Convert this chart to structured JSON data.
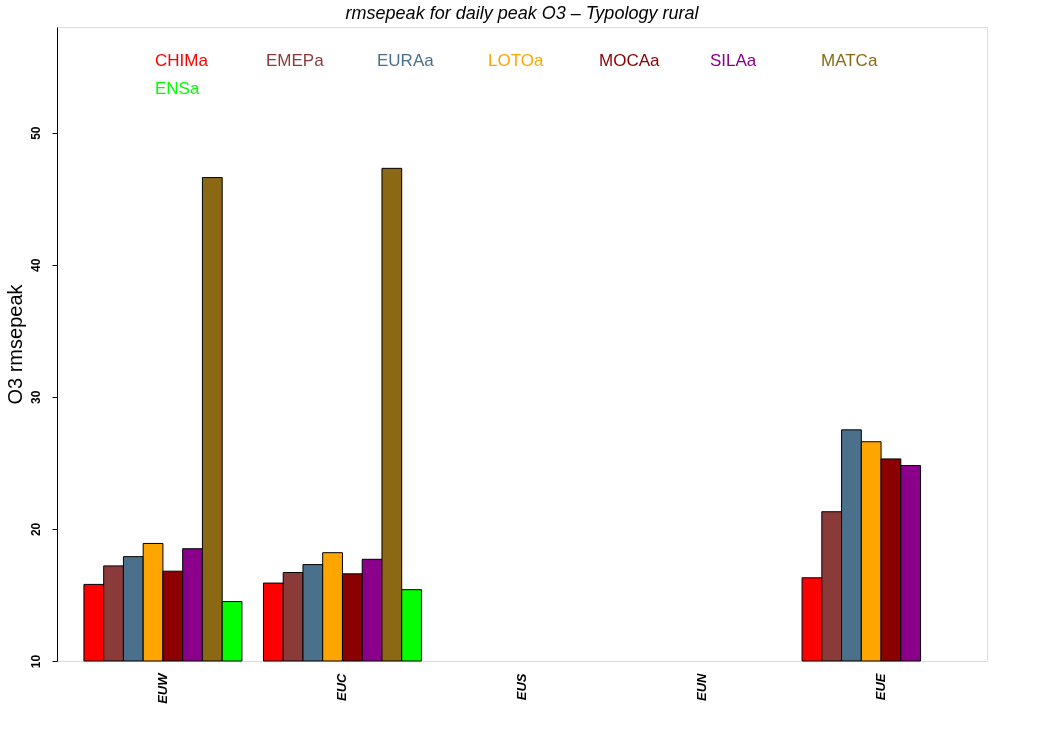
{
  "chart_data": {
    "type": "bar",
    "title": "rmsepeak  for daily  peak O3 – Typology rural",
    "ylabel": "O3 rmsepeak",
    "categories": [
      "EUW",
      "EUC",
      "EUS",
      "EUN",
      "EUE"
    ],
    "series": [
      {
        "name": "CHIMa",
        "color": "#ff0000",
        "values": [
          15.8,
          15.9,
          null,
          null,
          16.3
        ]
      },
      {
        "name": "EMEPa",
        "color": "#8b3a3a",
        "values": [
          17.2,
          16.7,
          null,
          null,
          21.3
        ]
      },
      {
        "name": "EURAa",
        "color": "#4a708b",
        "values": [
          17.9,
          17.3,
          null,
          null,
          27.5
        ]
      },
      {
        "name": "LOTOa",
        "color": "#ffa500",
        "values": [
          18.9,
          18.2,
          null,
          null,
          26.6
        ]
      },
      {
        "name": "MOCAa",
        "color": "#8b0000",
        "values": [
          16.8,
          16.6,
          null,
          null,
          25.3
        ]
      },
      {
        "name": "SILAa",
        "color": "#8b008b",
        "values": [
          18.5,
          17.7,
          null,
          null,
          24.8
        ]
      },
      {
        "name": "MATCa",
        "color": "#8b6914",
        "values": [
          46.6,
          47.3,
          null,
          null,
          null
        ]
      },
      {
        "name": "ENSa",
        "color": "#00ff00",
        "values": [
          14.5,
          15.4,
          null,
          null,
          null
        ]
      }
    ],
    "ylim": [
      10,
      58
    ],
    "yticks": [
      10,
      20,
      30,
      40,
      50
    ],
    "grid": false,
    "legend": "top"
  }
}
